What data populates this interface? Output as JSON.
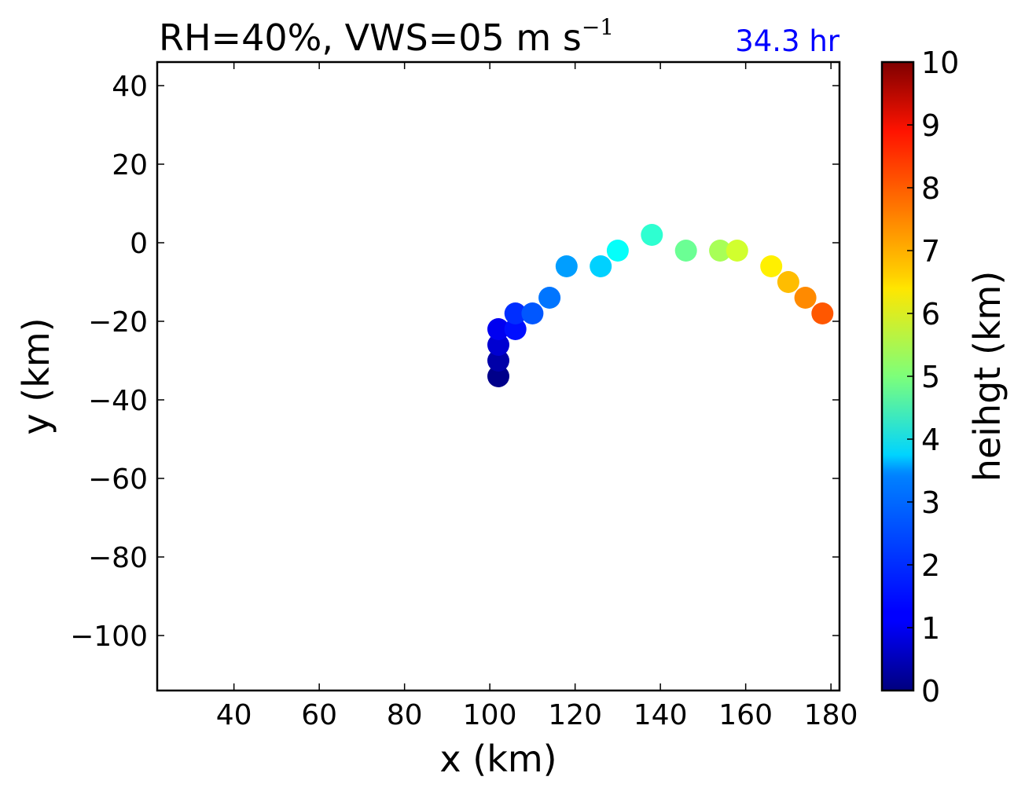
{
  "chart_data": {
    "type": "scatter",
    "title_main": "RH=40%, VWS=05 m s",
    "title_sup": "−1",
    "time_label": "34.3 hr",
    "xlabel": "x (km)",
    "ylabel": "y (km)",
    "xlim": [
      22,
      182
    ],
    "ylim": [
      -114,
      46
    ],
    "xticks": [
      40,
      60,
      80,
      100,
      120,
      140,
      160,
      180
    ],
    "xtick_labels": [
      "40",
      "60",
      "80",
      "100",
      "120",
      "140",
      "160",
      "180"
    ],
    "yticks": [
      40,
      20,
      0,
      -20,
      -40,
      -60,
      -80,
      -100
    ],
    "ytick_labels": [
      "40",
      "20",
      "0",
      "−20",
      "−40",
      "−60",
      "−80",
      "−100"
    ],
    "colorbar": {
      "label": "heihgt (km)",
      "range": [
        0,
        10
      ],
      "colormap": "jet",
      "ticks": [
        0,
        1,
        2,
        3,
        4,
        5,
        6,
        7,
        8,
        9,
        10
      ],
      "tick_labels": [
        "0",
        "1",
        "2",
        "3",
        "4",
        "5",
        "6",
        "7",
        "8",
        "9",
        "10"
      ]
    },
    "grid": false,
    "points": [
      {
        "x": 102,
        "y": -34,
        "h": 0.1
      },
      {
        "x": 102,
        "y": -30,
        "h": 0.4
      },
      {
        "x": 102,
        "y": -26,
        "h": 0.8
      },
      {
        "x": 102,
        "y": -22,
        "h": 1.1
      },
      {
        "x": 106,
        "y": -22,
        "h": 1.4
      },
      {
        "x": 106,
        "y": -18,
        "h": 1.7
      },
      {
        "x": 110,
        "y": -18,
        "h": 2.1
      },
      {
        "x": 114,
        "y": -14,
        "h": 2.4
      },
      {
        "x": 118,
        "y": -6,
        "h": 2.8
      },
      {
        "x": 126,
        "y": -6,
        "h": 3.3
      },
      {
        "x": 130,
        "y": -2,
        "h": 3.8
      },
      {
        "x": 138,
        "y": 2,
        "h": 4.2
      },
      {
        "x": 146,
        "y": -2,
        "h": 4.8
      },
      {
        "x": 154,
        "y": -2,
        "h": 5.4
      },
      {
        "x": 158,
        "y": -2,
        "h": 5.8
      },
      {
        "x": 166,
        "y": -6,
        "h": 6.4
      },
      {
        "x": 170,
        "y": -10,
        "h": 6.9
      },
      {
        "x": 174,
        "y": -14,
        "h": 7.4
      },
      {
        "x": 178,
        "y": -18,
        "h": 7.9
      }
    ]
  },
  "colors": {
    "time_label": "#0000ff",
    "axes": "#000000"
  }
}
